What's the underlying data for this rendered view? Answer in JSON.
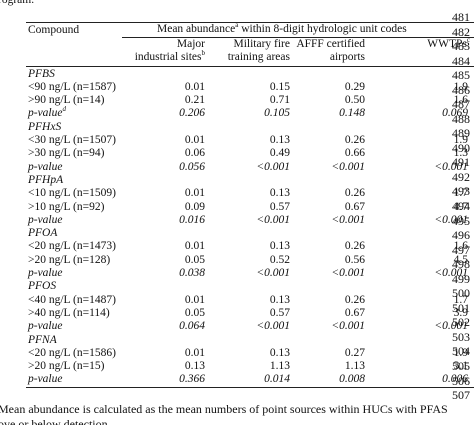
{
  "header": {
    "fragment": "rogram."
  },
  "table": {
    "column_header": "Compound",
    "group_header": {
      "text": "Mean abundance",
      "sup": "a",
      "rest": " within 8-digit hydrologic unit codes"
    },
    "columns": [
      {
        "lines": [
          "Major",
          "industrial sites"
        ],
        "sup": "b"
      },
      {
        "lines": [
          "Military fire",
          "training areas"
        ],
        "sup": ""
      },
      {
        "lines": [
          "AFFF certified",
          "airports"
        ],
        "sup": ""
      },
      {
        "lines": [
          "WWTPs"
        ],
        "sup": "c"
      }
    ],
    "sections": [
      {
        "name": "PFBS",
        "rows": [
          {
            "label": "<90 ng/L (n=1587)",
            "values": [
              "0.01",
              "0.15",
              "0.29",
              "1.9"
            ]
          },
          {
            "label": ">90 ng/L (n=14)",
            "values": [
              "0.21",
              "0.71",
              "0.50",
              "1.6"
            ]
          },
          {
            "label": "p-value",
            "sup": "d",
            "italic": true,
            "values": [
              "0.206",
              "0.105",
              "0.148",
              "0.069"
            ]
          }
        ]
      },
      {
        "name": "PFHxS",
        "rows": [
          {
            "label": "<30 ng/L (n=1507)",
            "values": [
              "0.01",
              "0.13",
              "0.26",
              "1.9"
            ]
          },
          {
            "label": ">30 ng/L (n=94)",
            "values": [
              "0.06",
              "0.49",
              "0.66",
              "1.3"
            ]
          },
          {
            "label": "p-value",
            "italic": true,
            "values": [
              "0.056",
              "<0.001",
              "<0.001",
              "<0.001"
            ]
          }
        ]
      },
      {
        "name": "PFHpA",
        "rows": [
          {
            "label": "<10 ng/L (n=1509)",
            "values": [
              "0.01",
              "0.13",
              "0.26",
              "1.7"
            ]
          },
          {
            "label": ">10 ng/L (n=92)",
            "values": [
              "0.09",
              "0.57",
              "0.67",
              "4.7"
            ]
          },
          {
            "label": "p-value",
            "italic": true,
            "values": [
              "0.016",
              "<0.001",
              "<0.001",
              "<0.001"
            ]
          }
        ]
      },
      {
        "name": "PFOA",
        "rows": [
          {
            "label": "<20 ng/L (n=1473)",
            "values": [
              "0.01",
              "0.13",
              "0.26",
              "1.6"
            ]
          },
          {
            "label": ">20 ng/L (n=128)",
            "values": [
              "0.05",
              "0.52",
              "0.56",
              "4.5"
            ]
          },
          {
            "label": "p-value",
            "italic": true,
            "values": [
              "0.038",
              "<0.001",
              "<0.001",
              "<0.001"
            ]
          }
        ]
      },
      {
        "name": "PFOS",
        "rows": [
          {
            "label": "<40 ng/L (n=1487)",
            "values": [
              "0.01",
              "0.13",
              "0.26",
              "1.7"
            ]
          },
          {
            "label": ">40 ng/L (n=114)",
            "values": [
              "0.05",
              "0.57",
              "0.67",
              "3.9"
            ]
          },
          {
            "label": "p-value",
            "italic": true,
            "values": [
              "0.064",
              "<0.001",
              "<0.001",
              "<0.001"
            ]
          }
        ]
      },
      {
        "name": "PFNA",
        "rows": [
          {
            "label": "<20 ng/L (n=1586)",
            "values": [
              "0.01",
              "0.13",
              "0.27",
              "1.9"
            ]
          },
          {
            "label": ">20 ng/L (n=15)",
            "values": [
              "0.13",
              "1.13",
              "1.13",
              "3.1"
            ]
          },
          {
            "label": "p-value",
            "italic": true,
            "values": [
              "0.366",
              "0.014",
              "0.008",
              "0.006"
            ]
          }
        ]
      }
    ]
  },
  "line_numbers": [
    481,
    482,
    483,
    484,
    485,
    486,
    487,
    488,
    489,
    490,
    491,
    492,
    493,
    494,
    495,
    496,
    497,
    498,
    499,
    500,
    501,
    502,
    503,
    504,
    505,
    506,
    507
  ],
  "footnote": [
    "Mean abundance is calculated as the mean numbers of point sources within HUCs with PFAS",
    "ove or below detection"
  ]
}
